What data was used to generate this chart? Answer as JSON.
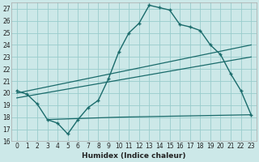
{
  "xlabel": "Humidex (Indice chaleur)",
  "bg_color": "#cce8e8",
  "grid_color": "#99cccc",
  "line_color": "#1a6b6b",
  "xlim": [
    -0.5,
    23.5
  ],
  "ylim": [
    16,
    27.5
  ],
  "yticks": [
    16,
    17,
    18,
    19,
    20,
    21,
    22,
    23,
    24,
    25,
    26,
    27
  ],
  "xticks": [
    0,
    1,
    2,
    3,
    4,
    5,
    6,
    7,
    8,
    9,
    10,
    11,
    12,
    13,
    14,
    15,
    16,
    17,
    18,
    19,
    20,
    21,
    22,
    23
  ],
  "line1_x": [
    0,
    1,
    2,
    3,
    4,
    5,
    6,
    7,
    8,
    9,
    10,
    11,
    12,
    13,
    14,
    15,
    16,
    17,
    18,
    19,
    20,
    21,
    22,
    23
  ],
  "line1_y": [
    20.2,
    19.9,
    19.1,
    17.8,
    17.5,
    16.6,
    17.8,
    18.8,
    19.4,
    21.2,
    23.4,
    25.0,
    25.8,
    27.3,
    27.1,
    26.9,
    25.7,
    25.5,
    25.2,
    24.0,
    23.2,
    21.6,
    20.2,
    18.2
  ],
  "line2_x": [
    0,
    23
  ],
  "line2_y": [
    20.0,
    24.0
  ],
  "line3_x": [
    0,
    23
  ],
  "line3_y": [
    19.6,
    23.0
  ],
  "line4_x": [
    3,
    10,
    23
  ],
  "line4_y": [
    17.8,
    18.0,
    18.2
  ]
}
